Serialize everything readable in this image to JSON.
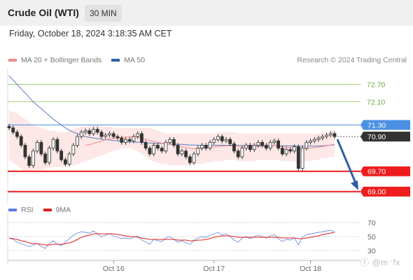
{
  "header": {
    "title": "Crude Oil (WTI)",
    "interval": "30 MIN"
  },
  "timestamp": "Friday, October 18, 2024 3:18:35 AM CET",
  "legend": {
    "ma20_label": "MA 20 + Bollinger Bands",
    "ma50_label": "MA 50",
    "rsi_label": "RSI",
    "ma9_label": "9MA"
  },
  "credit": "Research © 2024 Trading Central",
  "watermark": "ⓕ @m⁻fx",
  "colors": {
    "up": "#ffffff",
    "down": "#333333",
    "bollinger_fill": "#fde3e3",
    "ma20": "#f08a8a",
    "ma50": "#5a7cc0",
    "rsi": "#6f8fe0",
    "rsi_ma": "#e02020",
    "resistance": "#9fcf7a",
    "pivot": "#4a90e2",
    "support": "#ee1c1c",
    "current": "#333333",
    "arrow": "#2d5fa8"
  },
  "chart_data": [
    {
      "type": "candlestick",
      "x_ticks": [
        "Oct 16",
        "Oct 17",
        "Oct 18"
      ],
      "ylim": [
        68.8,
        73.1
      ],
      "levels": [
        {
          "value": 72.7,
          "label": "72.70",
          "kind": "resistance"
        },
        {
          "value": 72.1,
          "label": "72.10",
          "kind": "resistance"
        },
        {
          "value": 71.3,
          "label": "71.30",
          "kind": "pivot"
        },
        {
          "value": 70.9,
          "label": "70.90",
          "kind": "current"
        },
        {
          "value": 69.7,
          "label": "69.70",
          "kind": "support"
        },
        {
          "value": 69.0,
          "label": "69.00",
          "kind": "support"
        }
      ],
      "closes": [
        71.2,
        71.05,
        70.9,
        70.6,
        70.2,
        69.9,
        70.4,
        70.7,
        70.3,
        70.0,
        70.5,
        70.8,
        70.4,
        70.1,
        69.95,
        70.3,
        70.6,
        70.9,
        71.05,
        71.1,
        71.0,
        71.15,
        71.05,
        70.9,
        70.95,
        71.0,
        70.9,
        70.85,
        70.7,
        70.8,
        70.75,
        70.9,
        71.0,
        70.7,
        70.5,
        70.3,
        70.6,
        70.5,
        70.4,
        70.7,
        70.8,
        70.6,
        70.3,
        70.4,
        70.2,
        70.0,
        70.3,
        70.5,
        70.6,
        70.5,
        70.7,
        70.8,
        70.9,
        70.75,
        70.8,
        70.65,
        70.4,
        70.2,
        70.5,
        70.6,
        70.45,
        70.6,
        70.7,
        70.6,
        70.5,
        70.7,
        70.75,
        70.5,
        70.3,
        70.45,
        70.4,
        70.55,
        69.8,
        70.5,
        70.7,
        70.75,
        70.8,
        70.85,
        70.9,
        70.95,
        71.0,
        70.9
      ],
      "ma20": [
        null,
        null,
        null,
        null,
        null,
        null,
        null,
        null,
        null,
        null,
        null,
        null,
        null,
        null,
        null,
        null,
        null,
        null,
        null,
        70.6,
        70.62,
        70.66,
        70.7,
        70.74,
        70.79,
        70.82,
        70.84,
        70.86,
        70.87,
        70.88,
        70.89,
        70.89,
        70.88,
        70.85,
        70.81,
        70.76,
        70.73,
        70.7,
        70.67,
        70.66,
        70.64,
        70.61,
        70.57,
        70.55,
        70.52,
        70.49,
        70.48,
        70.48,
        70.49,
        70.5,
        70.52,
        70.54,
        70.56,
        70.57,
        70.58,
        70.58,
        70.57,
        70.55,
        70.54,
        70.54,
        70.54,
        70.55,
        70.56,
        70.56,
        70.56,
        70.57,
        70.58,
        70.57,
        70.55,
        70.54,
        70.53,
        70.53,
        70.48,
        70.48,
        70.49,
        70.5,
        70.52,
        70.54,
        70.56,
        70.58,
        70.61,
        70.63
      ],
      "bb_upper": [
        71.8,
        71.75,
        71.7,
        71.6,
        71.5,
        71.4,
        71.3,
        71.25,
        71.2,
        71.15,
        71.1,
        71.1,
        71.05,
        71.05,
        71.05,
        71.1,
        71.15,
        71.2,
        71.25,
        71.25,
        71.3,
        71.3,
        71.3,
        71.25,
        71.25,
        71.25,
        71.2,
        71.2,
        71.2,
        71.2,
        71.2,
        71.2,
        71.2,
        71.2,
        71.2,
        71.2,
        71.15,
        71.1,
        71.05,
        71.0,
        71.0,
        71.0,
        71.0,
        71.0,
        71.0,
        71.0,
        71.0,
        71.0,
        71.0,
        71.0,
        71.0,
        71.0,
        71.05,
        71.05,
        71.05,
        71.05,
        71.05,
        71.0,
        71.0,
        71.0,
        71.0,
        71.0,
        71.0,
        71.0,
        71.0,
        71.0,
        71.0,
        71.0,
        71.0,
        71.0,
        71.0,
        71.0,
        71.0,
        71.0,
        71.0,
        71.0,
        71.0,
        71.0,
        71.05,
        71.05,
        71.1,
        71.1
      ],
      "bb_lower": [
        70.1,
        70.0,
        69.9,
        69.8,
        69.7,
        69.7,
        69.75,
        69.75,
        69.75,
        69.8,
        69.8,
        69.85,
        69.85,
        69.85,
        69.85,
        69.9,
        69.9,
        69.95,
        70.0,
        70.05,
        70.1,
        70.15,
        70.2,
        70.25,
        70.3,
        70.35,
        70.4,
        70.45,
        70.5,
        70.5,
        70.5,
        70.45,
        70.4,
        70.3,
        70.2,
        70.1,
        70.05,
        70.0,
        69.95,
        69.95,
        69.9,
        69.9,
        69.9,
        69.9,
        69.9,
        69.9,
        69.95,
        69.95,
        69.95,
        70.0,
        70.0,
        70.05,
        70.05,
        70.05,
        70.1,
        70.1,
        70.1,
        70.05,
        70.05,
        70.05,
        70.05,
        70.05,
        70.1,
        70.1,
        70.1,
        70.1,
        70.1,
        70.1,
        70.05,
        70.05,
        70.05,
        70.05,
        69.95,
        70.0,
        70.05,
        70.05,
        70.1,
        70.1,
        70.15,
        70.15,
        70.2,
        70.2
      ],
      "ma50": [
        73.0,
        72.85,
        72.7,
        72.55,
        72.4,
        72.25,
        72.1,
        71.98,
        71.86,
        71.74,
        71.62,
        71.5,
        71.4,
        71.3,
        71.2,
        71.12,
        71.05,
        71.0,
        70.95,
        70.9,
        70.87,
        70.85,
        70.83,
        70.81,
        70.79,
        70.78,
        70.76,
        70.75,
        70.74,
        70.73,
        70.72,
        70.71,
        70.7,
        70.7,
        70.69,
        70.68,
        70.67,
        70.66,
        70.66,
        70.65,
        70.64,
        70.64,
        70.63,
        70.63,
        70.62,
        70.61,
        70.61,
        70.6,
        70.6,
        70.6,
        70.6,
        70.6,
        70.6,
        70.6,
        70.6,
        70.6,
        70.6,
        70.6,
        70.59,
        70.59,
        70.59,
        70.59,
        70.59,
        70.59,
        70.58,
        70.58,
        70.58,
        70.58,
        70.58,
        70.58,
        70.58,
        70.58,
        70.57,
        70.57,
        70.57,
        70.57,
        70.57,
        70.57,
        70.58,
        70.59,
        70.6,
        70.62
      ],
      "projection": {
        "from": 70.9,
        "to": 69.0
      }
    },
    {
      "type": "line",
      "name": "RSI",
      "ylim": [
        20,
        80
      ],
      "y_ticks": [
        70,
        50,
        30
      ],
      "rsi": [
        48,
        46,
        42,
        40,
        38,
        36,
        38,
        40,
        36,
        33,
        40,
        44,
        39,
        37,
        42,
        47,
        52,
        55,
        57,
        56,
        55,
        58,
        54,
        50,
        52,
        54,
        51,
        49,
        47,
        48,
        47,
        49,
        51,
        45,
        42,
        39,
        46,
        44,
        43,
        48,
        50,
        46,
        42,
        44,
        41,
        39,
        45,
        48,
        50,
        49,
        52,
        54,
        56,
        52,
        54,
        50,
        45,
        42,
        48,
        50,
        47,
        50,
        52,
        50,
        48,
        51,
        53,
        47,
        43,
        46,
        45,
        48,
        38,
        49,
        53,
        54,
        55,
        56,
        57,
        58,
        59,
        57
      ],
      "rsi_ma9": [
        48,
        47,
        46,
        44,
        43,
        41,
        40,
        40,
        39,
        38,
        38,
        39,
        39,
        39,
        40,
        41,
        43,
        46,
        49,
        51,
        52,
        54,
        54,
        54,
        54,
        54,
        54,
        53,
        52,
        51,
        50,
        50,
        49,
        48,
        47,
        46,
        46,
        46,
        46,
        46,
        46,
        46,
        45,
        45,
        45,
        44,
        44,
        45,
        45,
        46,
        47,
        49,
        50,
        51,
        51,
        51,
        50,
        49,
        49,
        49,
        49,
        49,
        49,
        49,
        49,
        49,
        49,
        49,
        48,
        48,
        48,
        48,
        47,
        47,
        48,
        49,
        50,
        51,
        53,
        54,
        55,
        56
      ]
    }
  ]
}
